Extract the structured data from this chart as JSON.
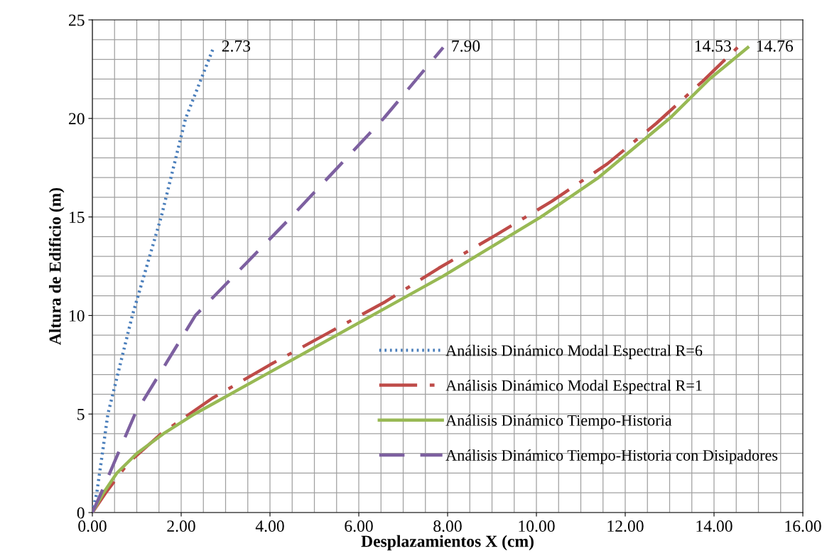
{
  "chart_data": {
    "type": "line",
    "xlabel": "Desplazamientos X (cm)",
    "ylabel": "Altura de Edificio (m)",
    "xlim": [
      0,
      16
    ],
    "ylim": [
      0,
      25
    ],
    "xticks": [
      {
        "value": 0,
        "label": "0.00"
      },
      {
        "value": 2,
        "label": "2.00"
      },
      {
        "value": 4,
        "label": "4.00"
      },
      {
        "value": 6,
        "label": "6.00"
      },
      {
        "value": 8,
        "label": "8.00"
      },
      {
        "value": 10,
        "label": "10.00"
      },
      {
        "value": 12,
        "label": "12.00"
      },
      {
        "value": 14,
        "label": "14.00"
      },
      {
        "value": 16,
        "label": "16.00"
      }
    ],
    "yticks": [
      0,
      5,
      10,
      15,
      20,
      25
    ],
    "grid": true,
    "legend": "bottom right",
    "marker": "none",
    "series": [
      {
        "name": "Análisis Dinámico Modal Espectral R=6",
        "color": "#4a7ebb",
        "line_style": "dotted",
        "x": [
          0,
          0.1,
          0.35,
          0.9,
          1.55,
          2.1,
          2.73
        ],
        "values": [
          0,
          1,
          5,
          10,
          15,
          20,
          23.6
        ]
      },
      {
        "name": "Análisis Dinámico Modal Espectral R=1",
        "color": "#be4b48",
        "line_style": "dashdot",
        "x": [
          0,
          0.3,
          0.8,
          1.55,
          2.7,
          4.0,
          5.3,
          6.6,
          7.8,
          9.1,
          10.35,
          11.6,
          12.7,
          13.75,
          14.53
        ],
        "values": [
          0,
          1,
          2.5,
          4,
          5.8,
          7.5,
          9.1,
          10.7,
          12.4,
          14.1,
          15.8,
          17.7,
          19.75,
          21.9,
          23.6
        ]
      },
      {
        "name": "Análisis Dinámico Tiempo-Historia",
        "color": "#98b954",
        "line_style": "solid",
        "x": [
          0,
          0.25,
          0.55,
          1.0,
          1.6,
          2.3,
          3.9,
          6.3,
          7.9,
          10.1,
          11.4,
          13.0,
          13.9,
          14.76
        ],
        "values": [
          0,
          1,
          2,
          3,
          4,
          5,
          7,
          10,
          12,
          15,
          17,
          20,
          22,
          23.6
        ]
      },
      {
        "name": "Análisis Dinámico Tiempo-Historia con Disipadores",
        "color": "#7d60a0",
        "line_style": "dashed",
        "x": [
          0,
          0.2,
          0.96,
          2.32,
          4.48,
          6.56,
          7.9
        ],
        "values": [
          0,
          1,
          5,
          10,
          15,
          20,
          23.6
        ]
      }
    ],
    "annotations": [
      {
        "text": "2.73",
        "x": 2.73,
        "y": 23.6
      },
      {
        "text": "7.90",
        "x": 7.9,
        "y": 23.6
      },
      {
        "text": "14.53",
        "x": 14.53,
        "y": 23.6
      },
      {
        "text": "14.76",
        "x": 14.76,
        "y": 23.6
      }
    ]
  }
}
